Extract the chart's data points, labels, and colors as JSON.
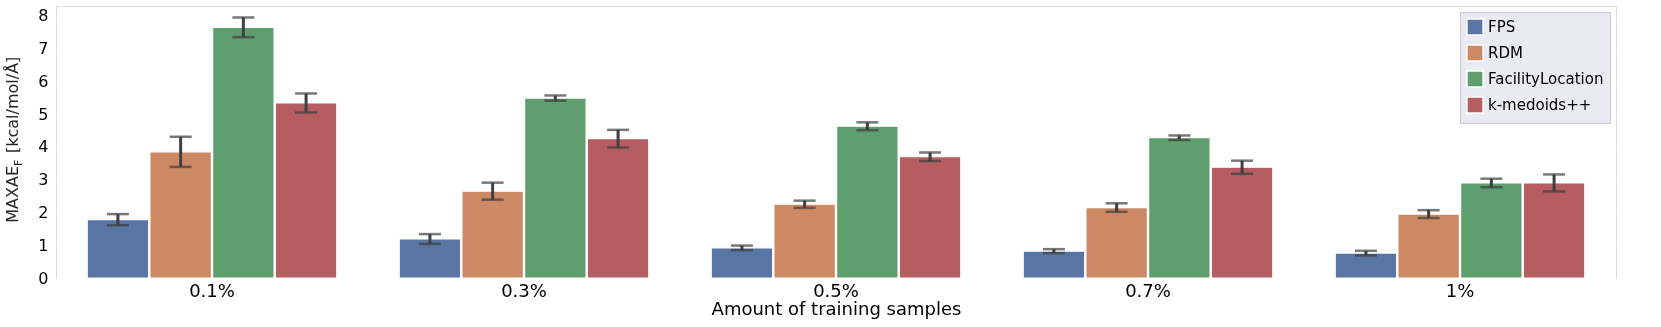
{
  "chart_data": {
    "type": "bar",
    "xlabel": "Amount of training samples",
    "ylabel": "MAXAE$_{F}$ [kcal/mol/Å]",
    "categories": [
      "0.1%",
      "0.3%",
      "0.5%",
      "0.7%",
      "1%"
    ],
    "series": [
      {
        "name": "FPS",
        "color": "#5875a4",
        "values": [
          1.78,
          1.19,
          0.92,
          0.82,
          0.76
        ],
        "errors": [
          0.17,
          0.15,
          0.07,
          0.06,
          0.07
        ]
      },
      {
        "name": "RDM",
        "color": "#cc8963",
        "values": [
          3.85,
          2.65,
          2.25,
          2.15,
          1.95
        ],
        "errors": [
          0.46,
          0.26,
          0.11,
          0.13,
          0.12
        ]
      },
      {
        "name": "FacilityLocation",
        "color": "#5f9e6e",
        "values": [
          7.65,
          5.49,
          4.63,
          4.28,
          2.9
        ],
        "errors": [
          0.3,
          0.08,
          0.12,
          0.07,
          0.13
        ]
      },
      {
        "name": "k-medoids++",
        "color": "#b55d60",
        "values": [
          5.34,
          4.25,
          3.7,
          3.38,
          2.9
        ],
        "errors": [
          0.29,
          0.27,
          0.13,
          0.2,
          0.26
        ]
      }
    ],
    "ylim": [
      0,
      8.3
    ],
    "yticks": [
      0,
      1,
      2,
      3,
      4,
      5,
      6,
      7,
      8
    ],
    "grid": "y",
    "legend": "top right"
  }
}
